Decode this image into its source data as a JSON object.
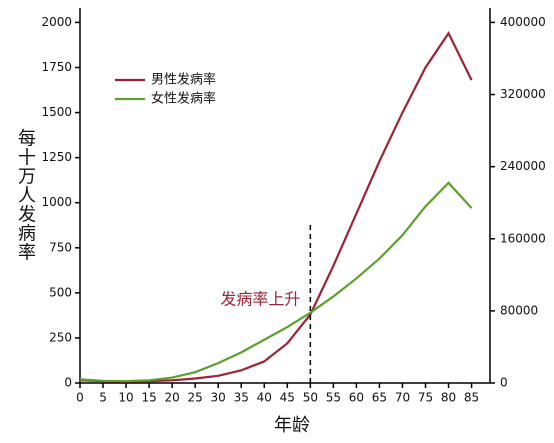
{
  "chart_data": {
    "type": "line",
    "y_label": "每十万人发病率",
    "x_label": "年龄",
    "x": [
      0,
      5,
      10,
      15,
      20,
      25,
      30,
      35,
      40,
      45,
      50,
      55,
      60,
      65,
      70,
      75,
      80,
      85
    ],
    "series": [
      {
        "name": "男性发病率",
        "color": "#9b2335",
        "values": [
          15,
          10,
          8,
          10,
          15,
          25,
          40,
          70,
          120,
          220,
          380,
          650,
          940,
          1230,
          1500,
          1750,
          1940,
          1680
        ]
      },
      {
        "name": "女性发病率",
        "color": "#5aa02c",
        "values": [
          20,
          12,
          10,
          15,
          30,
          60,
          110,
          170,
          240,
          310,
          390,
          480,
          580,
          690,
          820,
          980,
          1110,
          970
        ]
      }
    ],
    "xlim": [
      0,
      89
    ],
    "xticks": [
      0,
      5,
      10,
      15,
      20,
      25,
      30,
      35,
      40,
      45,
      50,
      55,
      60,
      65,
      70,
      75,
      80,
      85
    ],
    "ylim": [
      0,
      2080
    ],
    "yticks": [
      0,
      250,
      500,
      750,
      1000,
      1250,
      1500,
      1750,
      2000
    ],
    "y2lim": [
      0,
      416000
    ],
    "y2ticks": [
      0,
      80000,
      160000,
      240000,
      320000,
      400000
    ],
    "annotation": {
      "text": "发病率上升",
      "x": 50
    },
    "legend": "upper-left",
    "grid": false
  }
}
